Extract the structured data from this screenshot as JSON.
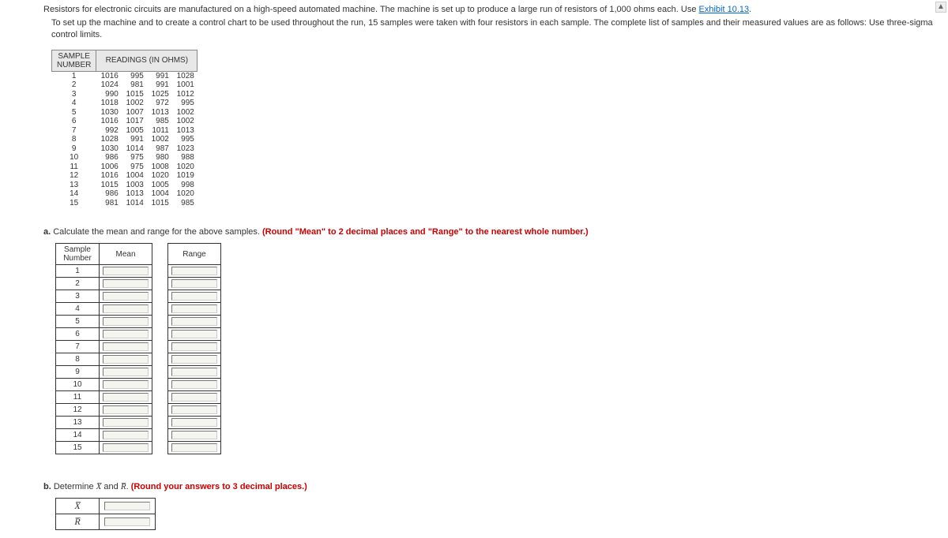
{
  "intro": {
    "line1_pre": "Resistors for electronic circuits are manufactured on a high-speed automated machine. The machine is set up to produce a large run of resistors of 1,000 ohms each. Use ",
    "link": "Exhibit 10.13",
    "line1_post": ".",
    "line2": "To set up the machine and to create a control chart to be used throughout the run, 15 samples were taken with four resistors in each sample. The complete list of samples and their measured values are as follows: Use three-sigma control limits."
  },
  "data_table": {
    "header_sample": "SAMPLE NUMBER",
    "header_readings": "READINGS (IN OHMS)",
    "rows": [
      {
        "n": "1",
        "v": [
          "1016",
          "995",
          "991",
          "1028"
        ]
      },
      {
        "n": "2",
        "v": [
          "1024",
          "981",
          "991",
          "1001"
        ]
      },
      {
        "n": "3",
        "v": [
          "990",
          "1015",
          "1025",
          "1012"
        ]
      },
      {
        "n": "4",
        "v": [
          "1018",
          "1002",
          "972",
          "995"
        ]
      },
      {
        "n": "5",
        "v": [
          "1030",
          "1007",
          "1013",
          "1002"
        ]
      },
      {
        "n": "6",
        "v": [
          "1016",
          "1017",
          "985",
          "1002"
        ]
      },
      {
        "n": "7",
        "v": [
          "992",
          "1005",
          "1011",
          "1013"
        ]
      },
      {
        "n": "8",
        "v": [
          "1028",
          "991",
          "1002",
          "995"
        ]
      },
      {
        "n": "9",
        "v": [
          "1030",
          "1014",
          "987",
          "1023"
        ]
      },
      {
        "n": "10",
        "v": [
          "986",
          "975",
          "980",
          "988"
        ]
      },
      {
        "n": "11",
        "v": [
          "1006",
          "975",
          "1008",
          "1020"
        ]
      },
      {
        "n": "12",
        "v": [
          "1016",
          "1004",
          "1020",
          "1019"
        ]
      },
      {
        "n": "13",
        "v": [
          "1015",
          "1003",
          "1005",
          "998"
        ]
      },
      {
        "n": "14",
        "v": [
          "986",
          "1013",
          "1004",
          "1020"
        ]
      },
      {
        "n": "15",
        "v": [
          "981",
          "1014",
          "1015",
          "985"
        ]
      }
    ]
  },
  "part_a": {
    "prefix": "a. ",
    "text": "Calculate the mean and range for the above samples. ",
    "instr": "(Round \"Mean\" to 2 decimal places and \"Range\" to the nearest whole number.)",
    "header_sample": "Sample Number",
    "header_mean": "Mean",
    "header_range": "Range",
    "rows": [
      "1",
      "2",
      "3",
      "4",
      "5",
      "6",
      "7",
      "8",
      "9",
      "10",
      "11",
      "12",
      "13",
      "14",
      "15"
    ]
  },
  "part_b": {
    "prefix": "b. ",
    "text1": "Determine ",
    "x_label": "X̅",
    "and": " and ",
    "r_label": "R̅",
    "text2": ". ",
    "instr": "(Round your answers to 3 decimal places.)",
    "row_x": "X̅",
    "row_r": "R̅"
  },
  "scroll_arrow": "▲"
}
